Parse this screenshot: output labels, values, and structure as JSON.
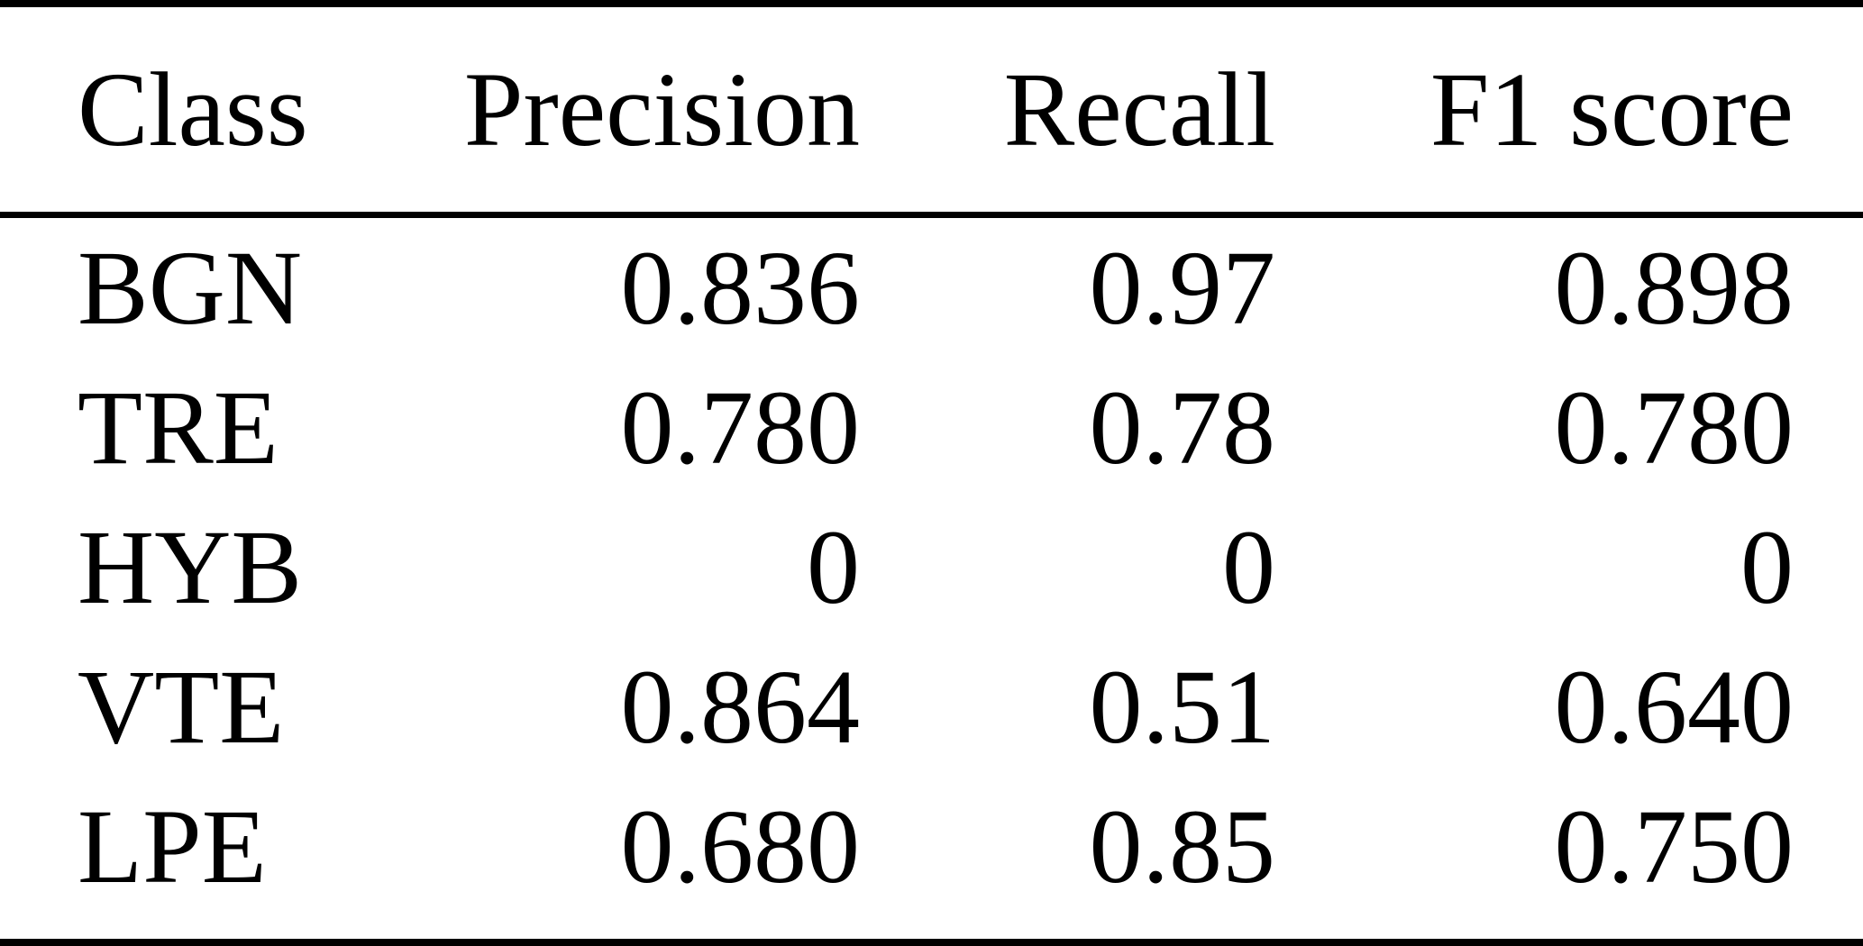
{
  "table": {
    "columns": [
      "Class",
      "Precision",
      "Recall",
      "F1 score"
    ],
    "rows": [
      {
        "class": "BGN",
        "precision": "0.836",
        "recall": "0.97",
        "f1": "0.898"
      },
      {
        "class": "TRE",
        "precision": "0.780",
        "recall": "0.78",
        "f1": "0.780"
      },
      {
        "class": "HYB",
        "precision": "0",
        "recall": "0",
        "f1": "0"
      },
      {
        "class": "VTE",
        "precision": "0.864",
        "recall": "0.51",
        "f1": "0.640"
      },
      {
        "class": "LPE",
        "precision": "0.680",
        "recall": "0.85",
        "f1": "0.750"
      }
    ]
  },
  "colors": {
    "text": "#000000",
    "background": "#ffffff",
    "rule": "#000000"
  },
  "chart_data": {
    "type": "table",
    "title": "",
    "columns": [
      "Class",
      "Precision",
      "Recall",
      "F1 score"
    ],
    "rows": [
      [
        "BGN",
        0.836,
        0.97,
        0.898
      ],
      [
        "TRE",
        0.78,
        0.78,
        0.78
      ],
      [
        "HYB",
        0,
        0,
        0
      ],
      [
        "VTE",
        0.864,
        0.51,
        0.64
      ],
      [
        "LPE",
        0.68,
        0.85,
        0.75
      ]
    ]
  }
}
